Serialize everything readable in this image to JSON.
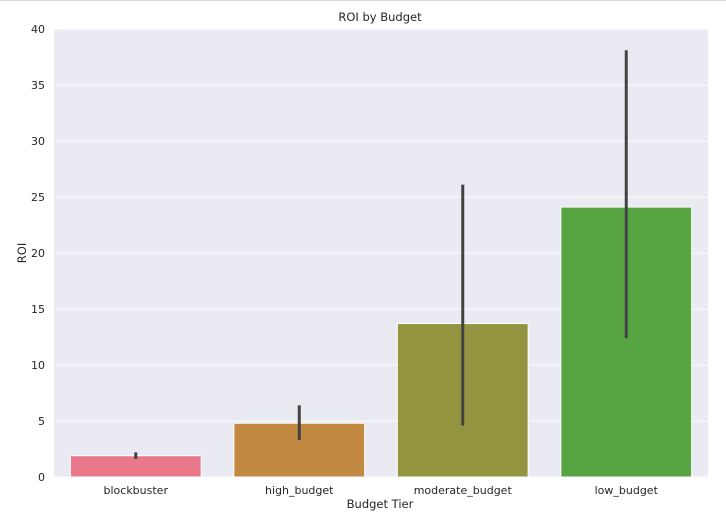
{
  "chart_data": {
    "type": "bar",
    "title": "ROI by Budget",
    "xlabel": "Budget Tier",
    "ylabel": "ROI",
    "categories": [
      "blockbuster",
      "high_budget",
      "moderate_budget",
      "low_budget"
    ],
    "values": [
      1.9,
      4.8,
      13.7,
      24.1
    ],
    "error_bars": [
      {
        "low": 1.6,
        "high": 2.2
      },
      {
        "low": 3.3,
        "high": 6.4
      },
      {
        "low": 4.6,
        "high": 26.1
      },
      {
        "low": 12.4,
        "high": 38.1
      }
    ],
    "colors": [
      "#e8788a",
      "#c28943",
      "#93943f",
      "#57a542"
    ],
    "errorbar_color": "#424242",
    "background_color": "#eaeaf2",
    "grid": true,
    "grid_color": "#ffffff",
    "ylim": [
      0,
      40
    ],
    "yticks": [
      0,
      5,
      10,
      15,
      20,
      25,
      30,
      35,
      40
    ]
  }
}
